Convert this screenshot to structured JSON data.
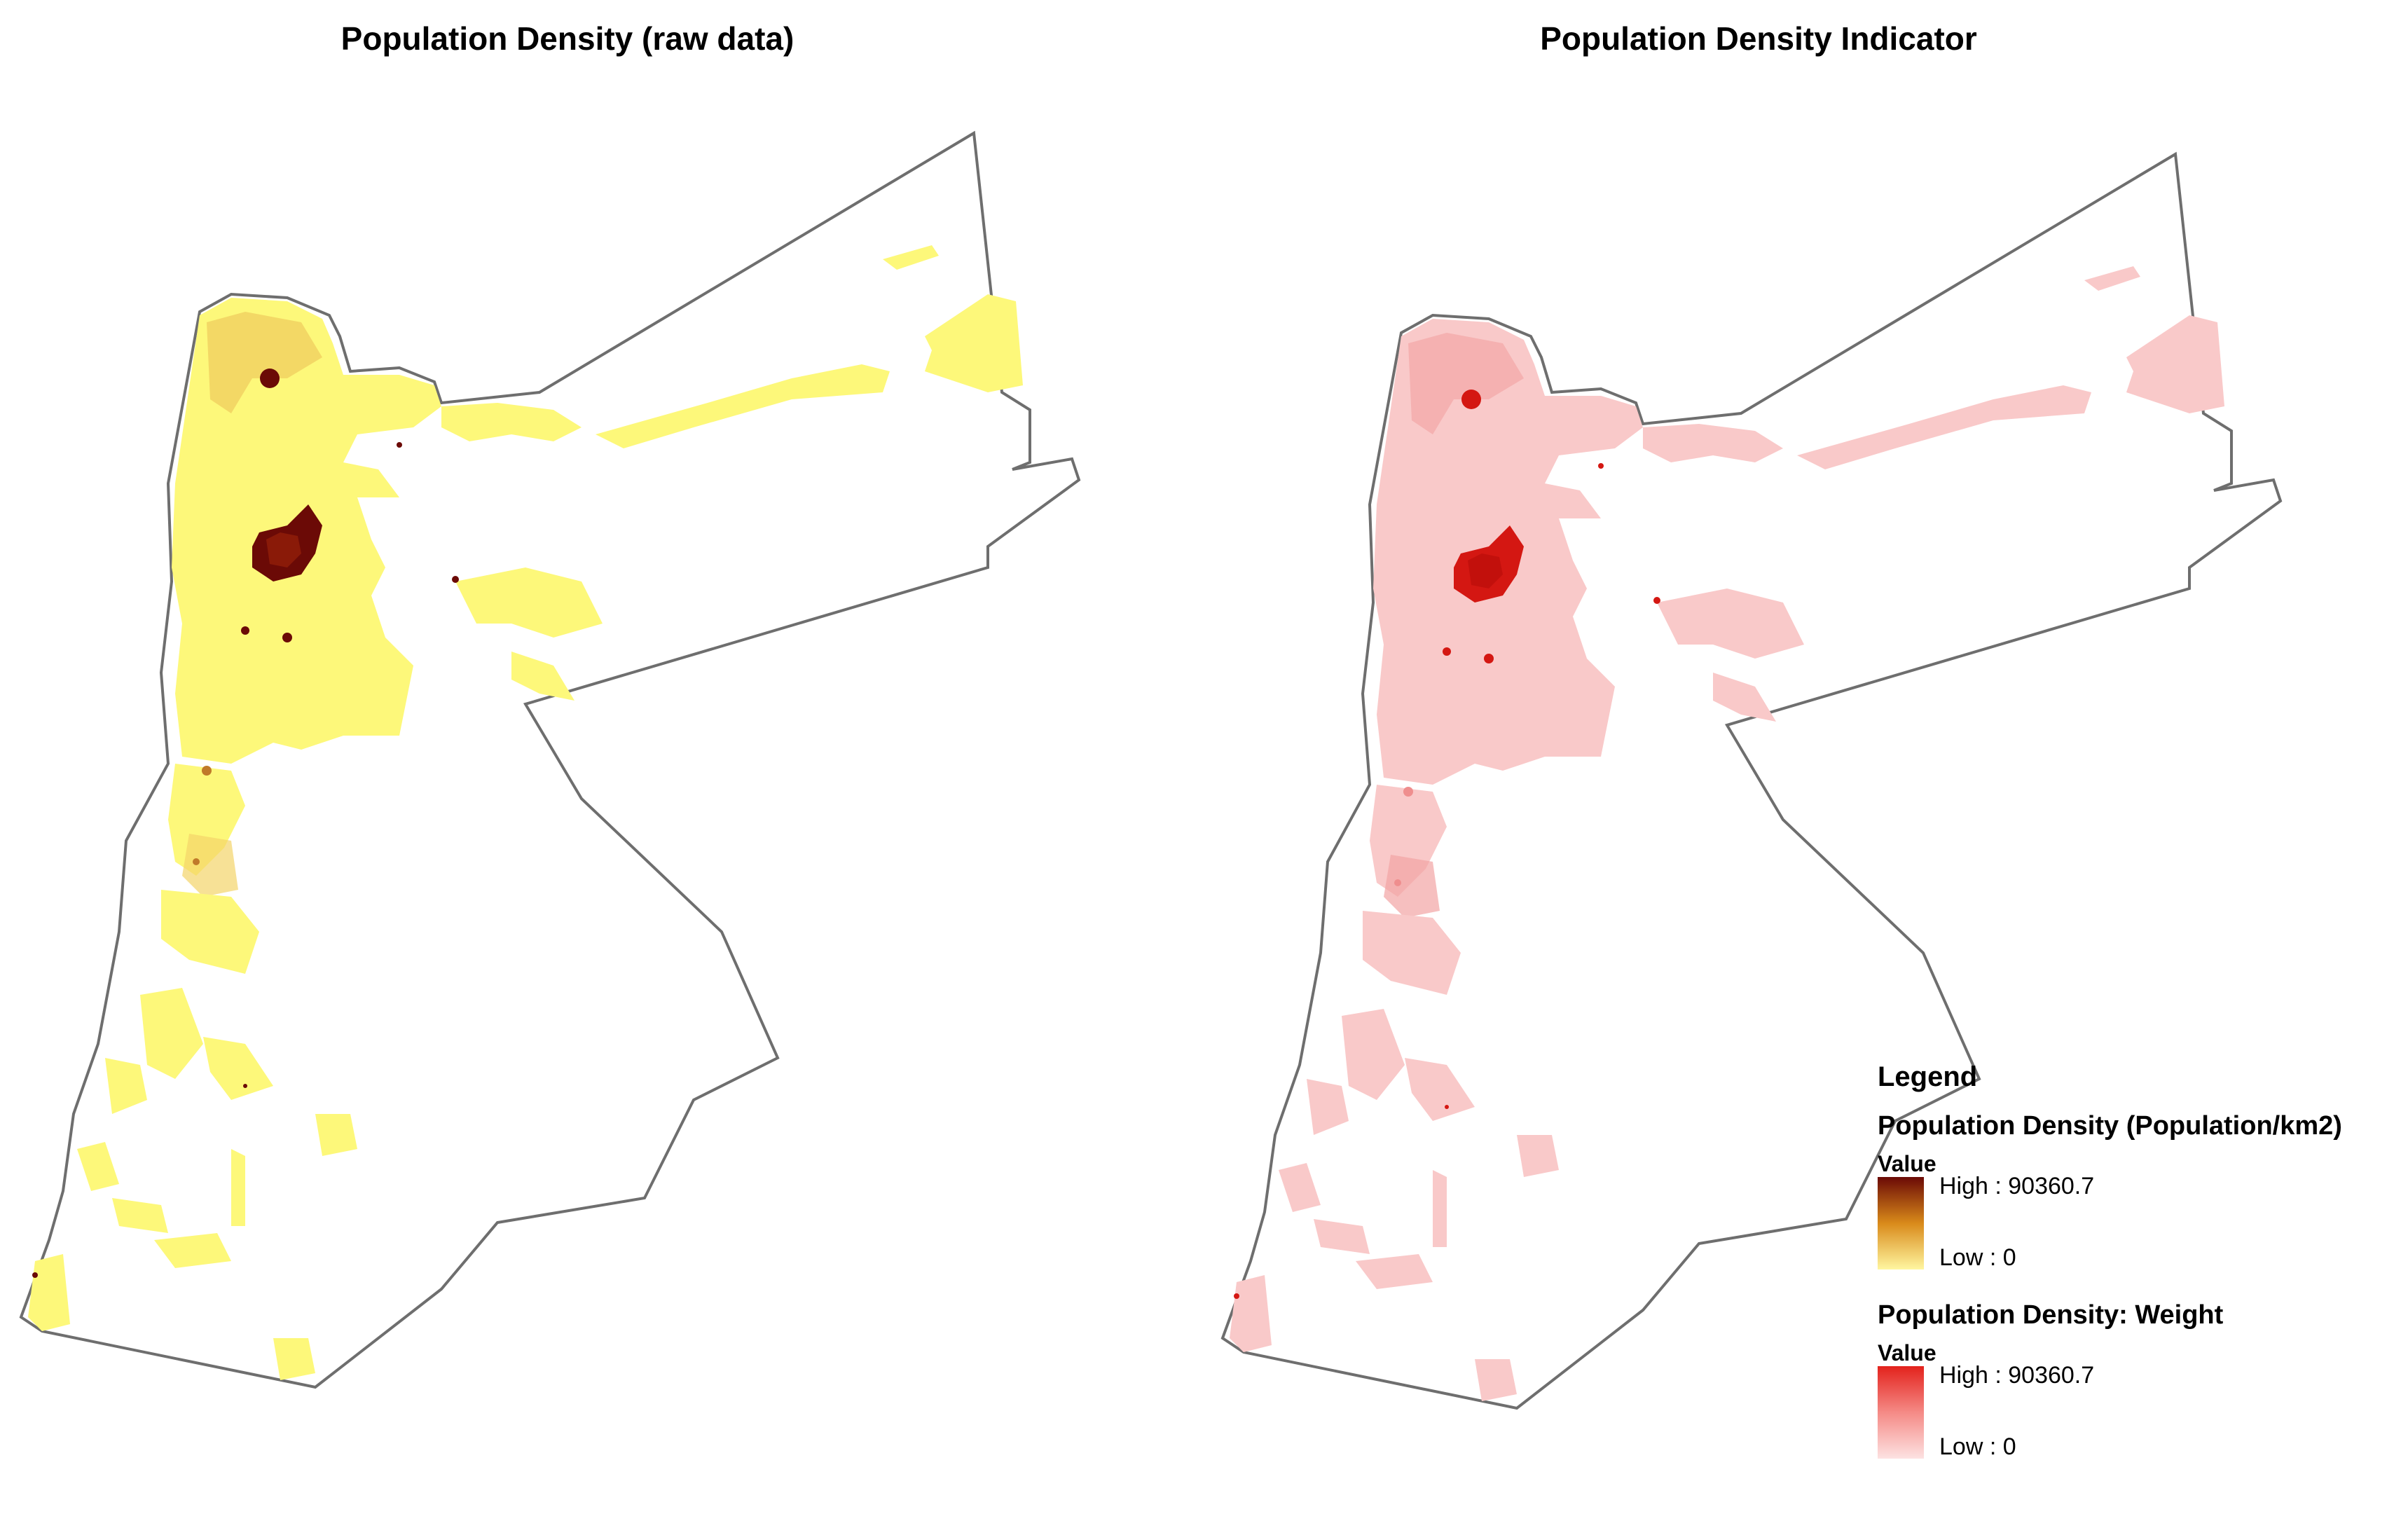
{
  "titles": {
    "left": "Population Density (raw data)",
    "right": "Population Density Indicator"
  },
  "legend": {
    "heading": "Legend",
    "layers": [
      {
        "name": "Population Density (Population/km2)",
        "value_label": "Value",
        "high_label": "High : 90360.7",
        "low_label": "Low : 0",
        "ramp_colors": [
          "#6b0a06",
          "#d98a1a",
          "#fff6a0"
        ]
      },
      {
        "name": "Population Density: Weight",
        "value_label": "Value",
        "high_label": "High : 90360.7",
        "low_label": "Low : 0",
        "ramp_colors": [
          "#e3221c",
          "#f58a86",
          "#fde2e2"
        ]
      }
    ]
  },
  "colors": {
    "raw_low": "#fdf87a",
    "raw_mid": "#e8b44a",
    "raw_high": "#6b0a06",
    "weight_low": "#f9c9c9",
    "weight_mid": "#ef8e8e",
    "weight_high": "#d41712",
    "border": "#6e6e6e"
  }
}
